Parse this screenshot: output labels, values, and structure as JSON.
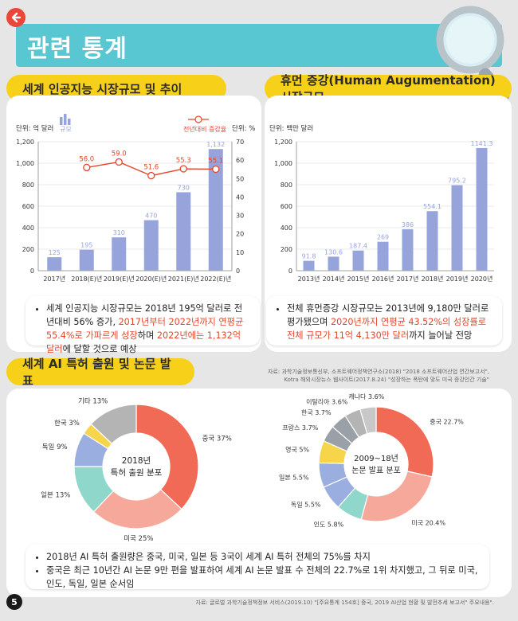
{
  "header": {
    "title": "관련 통계",
    "back_icon": "back-arrow-icon",
    "magnifier_icon": "magnifier-icon"
  },
  "colors": {
    "accent_red": "#e5452c",
    "teal": "#58c7d2",
    "yellow": "#f7d01a",
    "bar": "#96a4db"
  },
  "ai_market": {
    "heading": "세계 인공지능 시장규모 및 추이",
    "bullet_parts": [
      "세계 인공지능 시장규모는 2018년 195억 달러로 전년대비 56% 증가, ",
      "2017년부터 2022년까지 연평균 55.4%로 가파르게 성장",
      "하며 ",
      "2022년에는 1,132억 달러",
      "에 달할 것으로 예상"
    ]
  },
  "human_aug": {
    "heading": "휴먼 증강(Human Augumentation) 시장규모",
    "bullet_parts": [
      "전체 휴먼증강 시장규모는 2013년에 9,180만 달러로 평가됐으며 ",
      "2020년까지 연평균 43.52%의 성장률로 전체 규모가 11억 4,130만 달러",
      "까지 늘어날 전망"
    ]
  },
  "sources_top": [
    "자료: 과학기술정보통신부, 소프트웨어정책연구소(2018) \"2018 소프트웨어산업 연간보고서\",",
    "Kotra 해외시장뉴스 웹사이트(2017.8.24) \"성장하는 폭탄에 맞도 미국 증강인간 기술\""
  ],
  "patent": {
    "heading": "세계 AI 특허 출원 및 논문 발표",
    "bullets": [
      "2018년 AI 특허 출원량은 중국, 미국, 일본 등 3국이 세계 AI 특허 전체의 75%를 차지",
      "중국은 최근 10년간 AI 논문 9만 편을 발표하여 세계 AI 논문 발표 수 전체의 22.7%로 1위 차지했고, 그 뒤로 미국, 인도, 독일, 일본 순서임"
    ]
  },
  "source_bottom": "자료: 글로벌 과학기술정책정보 서비스(2019.10) \"[주요통계 154호] 중국, 2019 AI산업 현황 및 발전추세 보고서\" 주요내용\".",
  "page_number": "5",
  "chart_data": [
    {
      "type": "bar",
      "title": "세계 인공지능 시장규모 및 추이",
      "unit_label": "단위: 억 달러",
      "unit_label_right": "단위: %",
      "legend": [
        "규모",
        "전년대비 증감율"
      ],
      "categories": [
        "2017년",
        "2018(E)년",
        "2019(E)년",
        "2020(E)년",
        "2021(E)년",
        "2022(E)년"
      ],
      "values": [
        125,
        195,
        310,
        470,
        730,
        1132
      ],
      "value_labels": [
        "125",
        "195",
        "310",
        "470",
        "730",
        "1,132"
      ],
      "line_series": {
        "name": "전년대비 증감율",
        "values": [
          null,
          56.0,
          59.0,
          51.6,
          55.3,
          55.1
        ],
        "labels": [
          "",
          "56.0",
          "59.0",
          "51.6",
          "55.3",
          "55.1"
        ]
      },
      "ylim": [
        0,
        1200
      ],
      "yticks": [
        "0",
        "200",
        "400",
        "600",
        "800",
        "1,000",
        "1,200"
      ],
      "y2lim": [
        0,
        70
      ],
      "y2ticks": [
        "0",
        "10",
        "20",
        "30",
        "40",
        "50",
        "60",
        "70"
      ]
    },
    {
      "type": "bar",
      "title": "휴먼 증강 시장규모",
      "unit_label": "단위: 백만 달러",
      "categories": [
        "2013년",
        "2014년",
        "2015년",
        "2016년",
        "2017년",
        "2018년",
        "2019년",
        "2020년"
      ],
      "values": [
        91.8,
        130.6,
        187.4,
        269,
        386,
        554.1,
        795.2,
        1141.3
      ],
      "value_labels": [
        "91.8",
        "130.6",
        "187.4",
        "269",
        "386",
        "554.1",
        "795.2",
        "1141.3"
      ],
      "ylim": [
        0,
        1200
      ],
      "yticks": [
        "0",
        "200",
        "400",
        "600",
        "800",
        "1,000",
        "1,200"
      ]
    },
    {
      "type": "pie",
      "title": "2018년 특허 출원 분포",
      "center_lines": [
        "2018년",
        "특허 출원 분포"
      ],
      "slices": [
        {
          "label": "중국 37%",
          "value": 37,
          "color": "#f06a55"
        },
        {
          "label": "미국 25%",
          "value": 25,
          "color": "#f6a99b"
        },
        {
          "label": "일본 13%",
          "value": 13,
          "color": "#8fd6cb"
        },
        {
          "label": "독일 9%",
          "value": 9,
          "color": "#9aaedf"
        },
        {
          "label": "한국 3%",
          "value": 3,
          "color": "#f6d54a"
        },
        {
          "label": "기타 13%",
          "value": 13,
          "color": "#b4b4b4"
        }
      ]
    },
    {
      "type": "pie",
      "title": "2009~18년 논문 발표 분포",
      "center_lines": [
        "2009~18년",
        "논문 발표 분포"
      ],
      "slices": [
        {
          "label": "중국 22.7%",
          "value": 22.7,
          "color": "#f06a55"
        },
        {
          "label": "미국 20.4%",
          "value": 20.4,
          "color": "#f6a99b"
        },
        {
          "label": "인도 5.8%",
          "value": 5.8,
          "color": "#8fd6cb"
        },
        {
          "label": "독일 5.5%",
          "value": 5.5,
          "color": "#9aaedf"
        },
        {
          "label": "일본 5.5%",
          "value": 5.5,
          "color": "#9aaedf"
        },
        {
          "label": "영국 5%",
          "value": 5,
          "color": "#f6d54a"
        },
        {
          "label": "프랑스 3.7%",
          "value": 3.7,
          "color": "#9aa0a8"
        },
        {
          "label": "한국 3.7%",
          "value": 3.7,
          "color": "#9aa0a8"
        },
        {
          "label": "이탈리아 3.6%",
          "value": 3.6,
          "color": "#b4b4b4"
        },
        {
          "label": "캐나다 3.6%",
          "value": 3.6,
          "color": "#c8c8c8"
        }
      ]
    }
  ]
}
